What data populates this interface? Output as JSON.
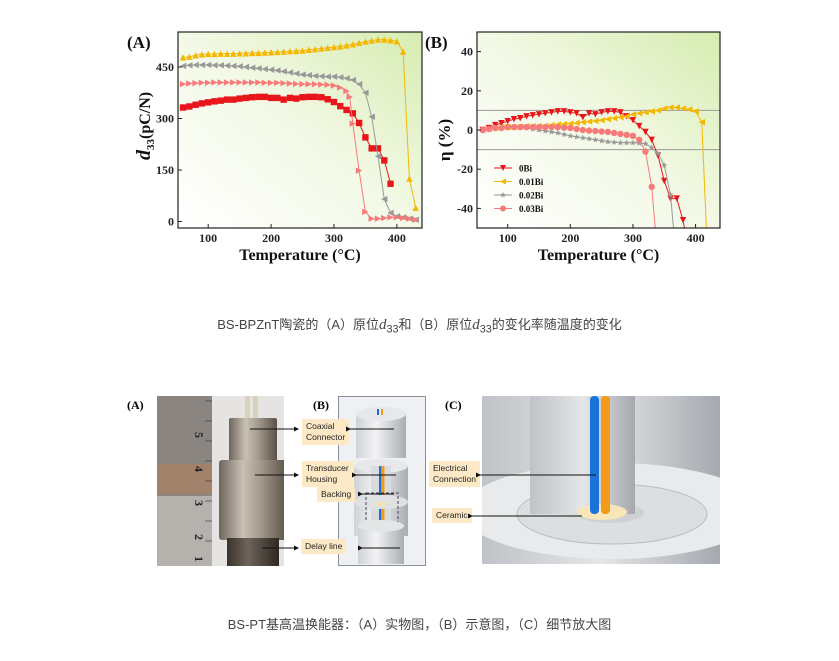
{
  "chart_data": [
    {
      "type": "line",
      "panel_label": "(A)",
      "xlabel": "Temperature (°C)",
      "ylabel_main": "d",
      "ylabel_sub": "33",
      "ylabel_unit": "(pC/N)",
      "xlim": [
        52,
        440
      ],
      "ylim": [
        -19,
        552
      ],
      "xticks": [
        100,
        200,
        300,
        400
      ],
      "yticks": [
        0,
        150,
        300,
        450
      ],
      "grid": false,
      "series": [
        {
          "color": "#e8151b",
          "marker": "square",
          "x": [
            60,
            70,
            80,
            90,
            100,
            110,
            120,
            130,
            140,
            150,
            160,
            170,
            180,
            190,
            200,
            210,
            220,
            230,
            240,
            250,
            260,
            270,
            280,
            290,
            300,
            310,
            320,
            330,
            340,
            350,
            360,
            370,
            380,
            390
          ],
          "y": [
            332,
            335,
            340,
            344,
            347,
            350,
            352,
            355,
            355,
            358,
            360,
            362,
            363,
            363,
            360,
            360,
            355,
            360,
            358,
            362,
            363,
            363,
            362,
            356,
            348,
            336,
            325,
            315,
            287,
            245,
            213,
            213,
            178,
            110
          ]
        },
        {
          "color": "#f5b800",
          "marker": "triangle-up",
          "x": [
            60,
            70,
            80,
            90,
            100,
            110,
            120,
            130,
            140,
            150,
            160,
            170,
            180,
            190,
            200,
            210,
            220,
            230,
            240,
            250,
            260,
            270,
            280,
            290,
            300,
            310,
            320,
            330,
            340,
            350,
            360,
            370,
            380,
            390,
            400,
            410,
            420,
            430
          ],
          "y": [
            478,
            480,
            484,
            487,
            488,
            488,
            489,
            489,
            489,
            490,
            490,
            491,
            491,
            492,
            493,
            494,
            495,
            496,
            497,
            498,
            500,
            502,
            504,
            506,
            508,
            510,
            513,
            516,
            520,
            524,
            527,
            530,
            530,
            528,
            525,
            495,
            125,
            40
          ]
        },
        {
          "color": "#999999",
          "marker": "triangle-left",
          "x": [
            60,
            70,
            80,
            90,
            100,
            110,
            120,
            130,
            140,
            150,
            160,
            170,
            180,
            190,
            200,
            210,
            220,
            230,
            240,
            250,
            260,
            270,
            280,
            290,
            300,
            310,
            320,
            330,
            340,
            350,
            360,
            370,
            380,
            390,
            400,
            410,
            420,
            430
          ],
          "y": [
            453,
            455,
            456,
            456,
            456,
            455,
            455,
            454,
            453,
            452,
            450,
            448,
            446,
            444,
            442,
            440,
            437,
            434,
            431,
            428,
            426,
            424,
            423,
            422,
            422,
            420,
            417,
            412,
            400,
            375,
            305,
            190,
            65,
            25,
            15,
            12,
            8,
            5
          ]
        },
        {
          "color": "#f77a7a",
          "marker": "triangle-right",
          "x": [
            60,
            70,
            80,
            90,
            100,
            110,
            120,
            130,
            140,
            150,
            160,
            170,
            180,
            190,
            200,
            210,
            220,
            230,
            240,
            250,
            260,
            270,
            280,
            290,
            300,
            310,
            320,
            325,
            330,
            340,
            350,
            360,
            370,
            380,
            390,
            400,
            410,
            420,
            430
          ],
          "y": [
            400,
            402,
            403,
            404,
            404,
            405,
            405,
            405,
            405,
            405,
            405,
            405,
            405,
            404,
            404,
            404,
            403,
            402,
            401,
            400,
            400,
            400,
            399,
            398,
            396,
            390,
            380,
            363,
            285,
            148,
            28,
            8,
            8,
            10,
            12,
            12,
            10,
            8,
            5
          ]
        }
      ]
    },
    {
      "type": "line",
      "panel_label": "(B)",
      "xlabel": "Temperature (°C)",
      "ylabel": "η (%)",
      "xlim": [
        51,
        439
      ],
      "ylim": [
        -50,
        50
      ],
      "xticks": [
        100,
        200,
        300,
        400
      ],
      "yticks": [
        -40,
        -20,
        0,
        20,
        40
      ],
      "reference_lines": [
        10,
        -10
      ],
      "legend_position": "bottom-left",
      "series": [
        {
          "name": "0Bi",
          "color": "#e8151b",
          "marker": "triangle-down",
          "x": [
            60,
            70,
            80,
            90,
            100,
            110,
            120,
            130,
            140,
            150,
            160,
            170,
            180,
            190,
            200,
            210,
            220,
            230,
            240,
            250,
            260,
            270,
            280,
            290,
            300,
            310,
            320,
            330,
            340,
            350,
            360,
            370,
            380,
            385
          ],
          "y": [
            0,
            1,
            2.5,
            3.5,
            4.5,
            5.5,
            6,
            7,
            7.5,
            8,
            8.5,
            9,
            9.5,
            9.5,
            9,
            8.5,
            6.5,
            8.5,
            8,
            9,
            9.5,
            9.5,
            9,
            7,
            5,
            2,
            -1,
            -5,
            -13,
            -26,
            -35,
            -35,
            -46,
            -55
          ]
        },
        {
          "name": "0.01Bi",
          "color": "#f5b800",
          "marker": "triangle-left",
          "x": [
            60,
            70,
            80,
            90,
            100,
            110,
            120,
            130,
            140,
            150,
            160,
            170,
            180,
            190,
            200,
            210,
            220,
            230,
            240,
            250,
            260,
            270,
            280,
            290,
            300,
            310,
            320,
            330,
            340,
            350,
            360,
            370,
            380,
            390,
            400,
            410,
            418
          ],
          "y": [
            0,
            0.5,
            1,
            1.5,
            1.5,
            1.5,
            1.8,
            2,
            2,
            2,
            2.2,
            2.5,
            2.8,
            3,
            3.3,
            3.6,
            4,
            4.3,
            4.6,
            5,
            5.5,
            6,
            6.5,
            7,
            8,
            8.5,
            9,
            9.5,
            10,
            11,
            11.5,
            11.5,
            11,
            10.5,
            9.5,
            4,
            -55
          ]
        },
        {
          "name": "0.02Bi",
          "color": "#999999",
          "marker": "star",
          "x": [
            60,
            70,
            80,
            90,
            100,
            110,
            120,
            130,
            140,
            150,
            160,
            170,
            180,
            190,
            200,
            210,
            220,
            230,
            240,
            250,
            260,
            270,
            280,
            290,
            300,
            310,
            320,
            330,
            340,
            350,
            360,
            366
          ],
          "y": [
            0,
            0.5,
            1,
            1,
            1.2,
            1.5,
            1.5,
            1,
            0.5,
            0,
            -0.5,
            -1,
            -1.5,
            -2.3,
            -3,
            -3.5,
            -4,
            -4.5,
            -5,
            -5.5,
            -6,
            -6.3,
            -6.5,
            -6.5,
            -6.5,
            -6.7,
            -7,
            -9,
            -12,
            -18,
            -33,
            -55
          ]
        },
        {
          "name": "0.03Bi",
          "color": "#f77a7a",
          "marker": "circle",
          "x": [
            60,
            70,
            80,
            90,
            100,
            110,
            120,
            130,
            140,
            150,
            160,
            170,
            180,
            190,
            200,
            210,
            220,
            230,
            240,
            250,
            260,
            270,
            280,
            290,
            300,
            310,
            320,
            330,
            337
          ],
          "y": [
            0,
            0.5,
            1,
            1,
            1.5,
            1.5,
            1.5,
            1.5,
            1.5,
            1.5,
            1.5,
            1.5,
            1.5,
            1.2,
            1,
            0.5,
            0,
            -0.3,
            -0.5,
            -0.8,
            -1,
            -1.5,
            -2,
            -2.5,
            -3,
            -5,
            -11,
            -29,
            -55
          ]
        }
      ]
    }
  ],
  "caption1": {
    "prefix": "BS-BPZnT陶瓷的（A）原位",
    "d1": "d",
    "sub1": "33",
    "middle": "和（B）原位",
    "d2": "d",
    "sub2": "33",
    "suffix": "的变化率随温度的变化"
  },
  "figure2": {
    "panel_a": "(A)",
    "panel_b": "(B)",
    "panel_c": "(C)",
    "ruler_numbers": [
      "5",
      "4",
      "3",
      "2",
      "1"
    ],
    "labels": {
      "coaxial": [
        "Coaxial",
        "Connector"
      ],
      "housing": [
        "Transducer",
        "Housing"
      ],
      "backing": "Backing",
      "delay": "Delay line",
      "electrical": [
        "Electrical",
        "Connection"
      ],
      "ceramic": "Ceramic"
    }
  },
  "caption2": "BS-PT基高温换能器：（A）实物图，（B）示意图，（C）细节放大图"
}
